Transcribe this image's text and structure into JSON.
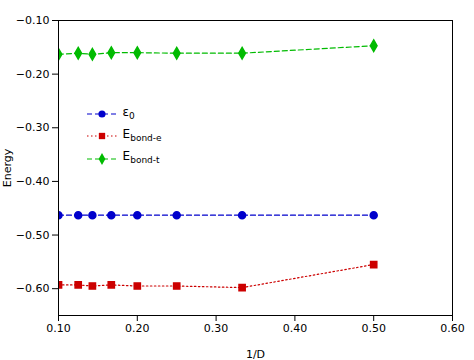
{
  "chart_data": {
    "type": "line",
    "xlabel": "1/D",
    "ylabel": "Energy",
    "xlim": [
      0.1,
      0.6
    ],
    "ylim": [
      -0.65,
      -0.1
    ],
    "xticks": [
      0.1,
      0.2,
      0.3,
      0.4,
      0.5,
      0.6
    ],
    "yticks": [
      -0.1,
      -0.2,
      -0.3,
      -0.4,
      -0.5,
      -0.6
    ],
    "grid": false,
    "legend": "upper left",
    "x": [
      0.1,
      0.125,
      0.143,
      0.167,
      0.2,
      0.25,
      0.333,
      0.5
    ],
    "series": [
      {
        "name": "ε0",
        "color": "#0000cc",
        "marker": "circle",
        "line_style": "dashed",
        "values": [
          -0.463,
          -0.463,
          -0.463,
          -0.463,
          -0.463,
          -0.463,
          -0.463,
          -0.463
        ]
      },
      {
        "name": "Ebond-e",
        "color": "#cc0000",
        "marker": "square",
        "line_style": "dotted",
        "values": [
          -0.593,
          -0.593,
          -0.595,
          -0.593,
          -0.595,
          -0.595,
          -0.598,
          -0.555
        ]
      },
      {
        "name": "Ebond-t",
        "color": "#00bb00",
        "marker": "diamond",
        "line_style": "dashed",
        "values": [
          -0.163,
          -0.161,
          -0.163,
          -0.16,
          -0.16,
          -0.161,
          -0.161,
          -0.147
        ]
      }
    ]
  }
}
